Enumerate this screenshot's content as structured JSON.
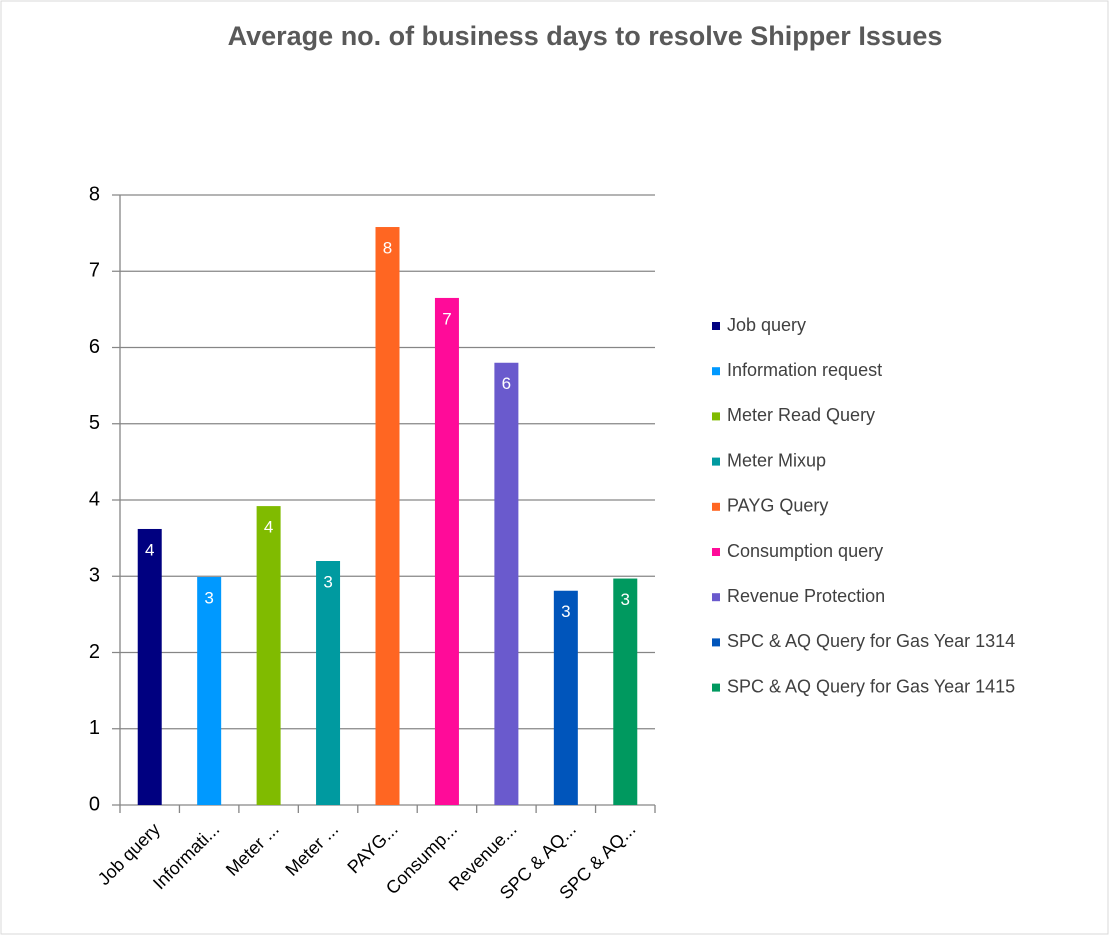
{
  "chart_data": {
    "type": "bar",
    "title": "Average no. of business days to resolve Shipper Issues",
    "categories": [
      "Job query",
      "Informati...",
      "Meter ...",
      "Meter ...",
      "PAYG...",
      "Consump...",
      "Revenue...",
      "SPC & AQ...",
      "SPC & AQ..."
    ],
    "legend": [
      "Job query",
      "Information request",
      "Meter Read Query",
      "Meter Mixup",
      "PAYG Query",
      "Consumption query",
      "Revenue Protection",
      "SPC & AQ Query for Gas Year 1314",
      "SPC & AQ Query for Gas Year 1415"
    ],
    "values": [
      3.62,
      2.99,
      3.92,
      3.2,
      7.58,
      6.65,
      5.8,
      2.81,
      2.97
    ],
    "value_labels": [
      "4",
      "3",
      "4",
      "3",
      "8",
      "7",
      "6",
      "3",
      "3"
    ],
    "colors": [
      "#000080",
      "#0099ff",
      "#80bb00",
      "#009aa0",
      "#ff6622",
      "#ff0b99",
      "#6a5acd",
      "#0055bb",
      "#00995f"
    ],
    "ylim": [
      0,
      8
    ],
    "yticks": [
      0,
      1,
      2,
      3,
      4,
      5,
      6,
      7,
      8
    ],
    "grid": true,
    "legend_position": "right"
  }
}
